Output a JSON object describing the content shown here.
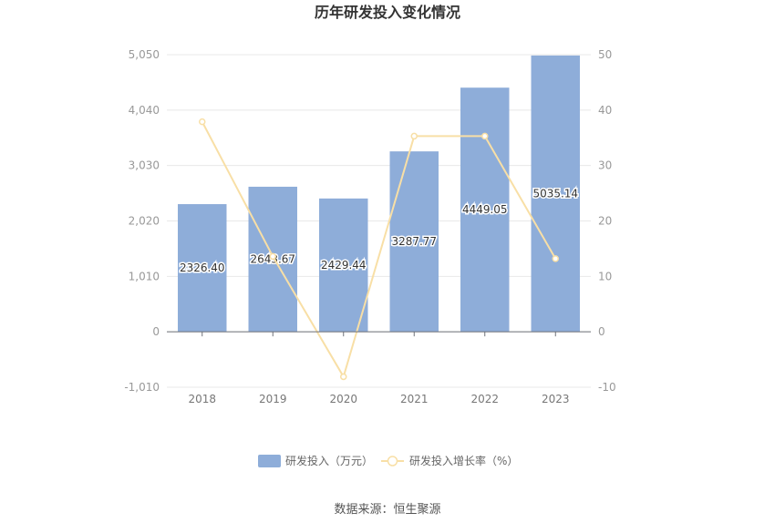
{
  "chart_data": {
    "type": "bar",
    "title": "历年研发投入变化情况",
    "categories": [
      "2018",
      "2019",
      "2020",
      "2021",
      "2022",
      "2023"
    ],
    "series": [
      {
        "name": "研发投入（万元）",
        "type": "bar",
        "axis": "left",
        "values": [
          2326.4,
          2643.67,
          2429.44,
          3287.77,
          4449.05,
          5035.14
        ],
        "labels": [
          "2326.40",
          "2643.67",
          "2429.44",
          "3287.77",
          "4449.05",
          "5035.14"
        ]
      },
      {
        "name": "研发投入增长率（%）",
        "type": "line",
        "axis": "right",
        "values": [
          37.9,
          13.6,
          -8.1,
          35.3,
          35.3,
          13.2
        ]
      }
    ],
    "y_left": {
      "min": -1010,
      "max": 5050,
      "ticks": [
        "-1,010",
        "0",
        "1,010",
        "2,020",
        "3,030",
        "4,040",
        "5,050"
      ]
    },
    "y_right": {
      "min": -10,
      "max": 50,
      "ticks": [
        "-10",
        "0",
        "10",
        "20",
        "30",
        "40",
        "50"
      ]
    },
    "legend_position": "bottom",
    "grid": true,
    "colors": {
      "bar": "#8eadd9",
      "line": "#f8dfa6",
      "marker_fill": "#ffffff",
      "grid": "#e8e8e8",
      "axis": "#6e7079"
    }
  },
  "source": "数据来源：恒生聚源"
}
